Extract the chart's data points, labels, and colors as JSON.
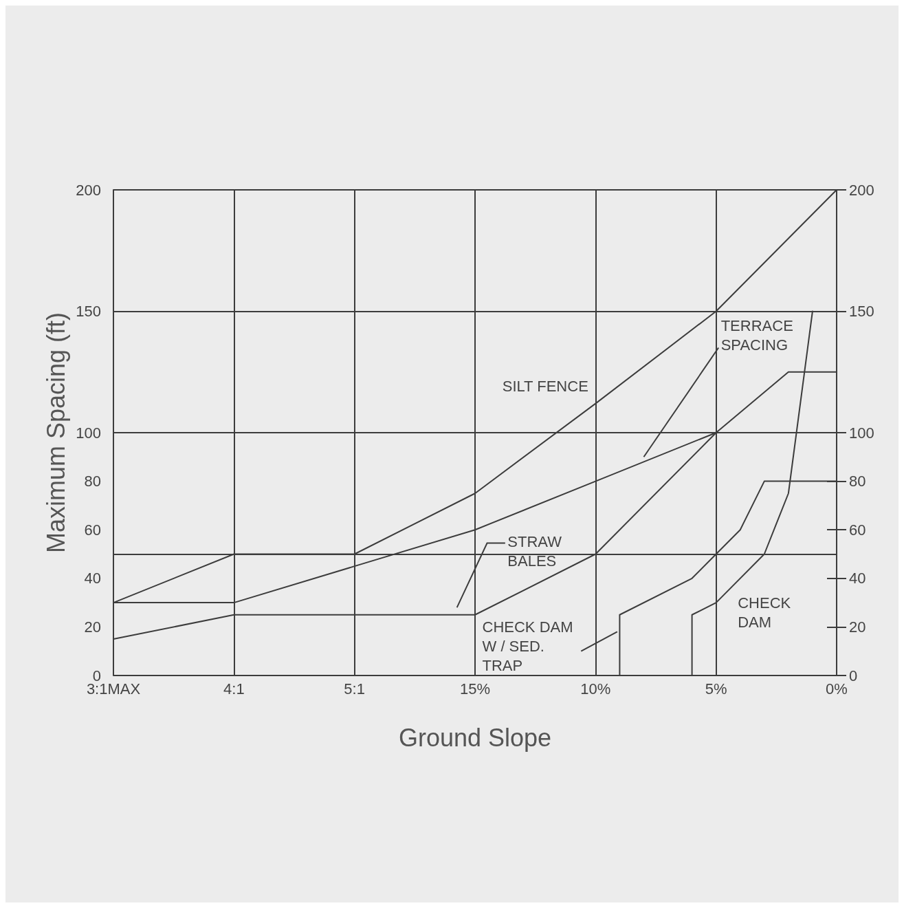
{
  "chart_data": {
    "type": "line",
    "xlabel": "Ground Slope",
    "ylabel": "Maximum Spacing (ft)",
    "xlim": [
      30,
      0
    ],
    "xticks": [
      {
        "value": 30,
        "label": "3:1MAX"
      },
      {
        "value": 25,
        "label": "4:1"
      },
      {
        "value": 20,
        "label": "5:1"
      },
      {
        "value": 15,
        "label": "15%"
      },
      {
        "value": 10,
        "label": "10%"
      },
      {
        "value": 5,
        "label": "5%"
      },
      {
        "value": 0,
        "label": "0%"
      }
    ],
    "ylim": [
      0,
      200
    ],
    "yticks": [
      0,
      20,
      40,
      60,
      80,
      100,
      150,
      200
    ],
    "y2lim": [
      0,
      200
    ],
    "y2ticks": [
      0,
      20,
      40,
      60,
      80,
      100,
      150,
      200
    ],
    "grid": "x",
    "marker": "none",
    "line_style": "solid",
    "ref_lines": [
      {
        "axis": "y",
        "value": 50,
        "color": "#3c3c3c"
      },
      {
        "axis": "y",
        "value": 100,
        "color": "#3c3c3c"
      },
      {
        "axis": "y",
        "value": 150,
        "color": "#3c3c3c"
      }
    ],
    "series": [
      {
        "name": "SILT FENCE",
        "color": "#3c3c3c",
        "x": [
          30,
          25,
          20,
          15,
          10,
          5,
          0
        ],
        "values": [
          30,
          50,
          50,
          75,
          112,
          150,
          200
        ]
      },
      {
        "name": "TERRACE SPACING",
        "color": "#3c3c3c",
        "x": [
          30,
          25,
          20,
          15,
          10,
          5,
          2,
          0
        ],
        "values": [
          30,
          30,
          45,
          60,
          80,
          100,
          125,
          125
        ]
      },
      {
        "name": "STRAW BALES",
        "color": "#3c3c3c",
        "x": [
          30,
          25,
          20,
          15,
          10,
          5
        ],
        "values": [
          15,
          25,
          25,
          25,
          50,
          100
        ]
      },
      {
        "name": "CHECK DAM W / SED. TRAP",
        "color": "#3c3c3c",
        "x": [
          9,
          9,
          6,
          5,
          4,
          3,
          0
        ],
        "values": [
          0,
          25,
          40,
          50,
          60,
          80,
          80
        ]
      },
      {
        "name": "CHECK DAM",
        "color": "#3c3c3c",
        "x": [
          6,
          6,
          5,
          3,
          2,
          1
        ],
        "values": [
          0,
          25,
          30,
          50,
          75,
          150
        ]
      }
    ]
  }
}
